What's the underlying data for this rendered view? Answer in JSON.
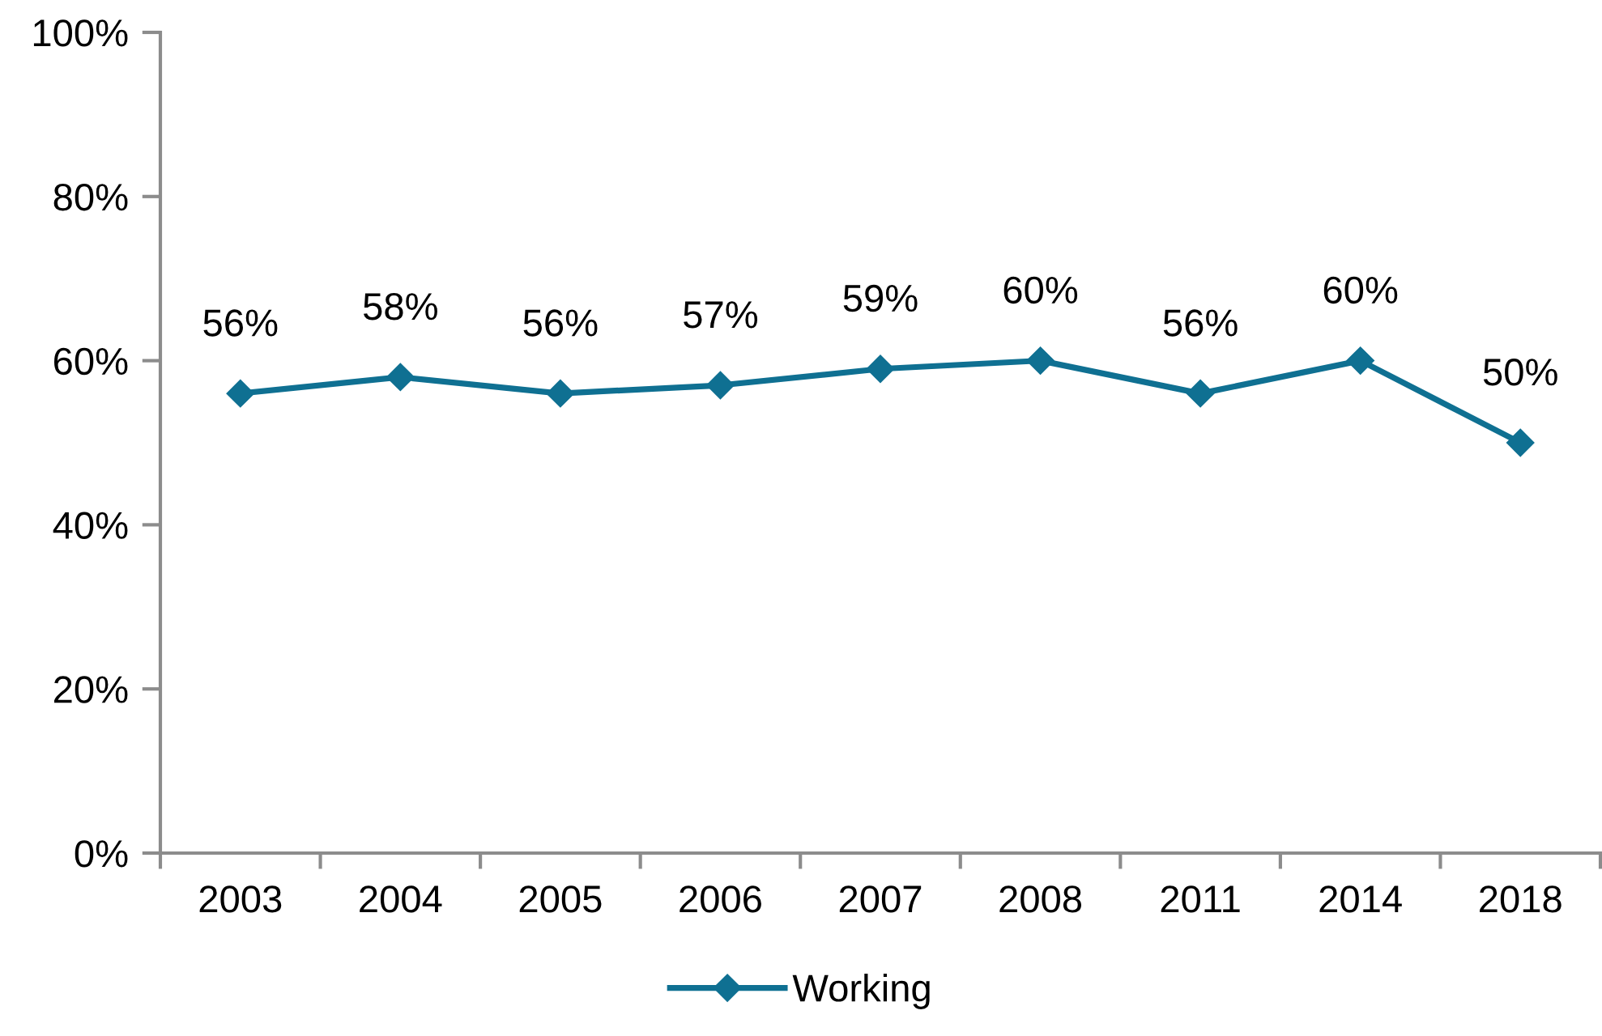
{
  "chart_data": {
    "type": "line",
    "categories": [
      "2003",
      "2004",
      "2005",
      "2006",
      "2007",
      "2008",
      "2011",
      "2014",
      "2018"
    ],
    "series": [
      {
        "name": "Working",
        "color": "#0f7092",
        "values": [
          56,
          58,
          56,
          57,
          59,
          60,
          56,
          60,
          50
        ],
        "value_labels": [
          "56%",
          "58%",
          "56%",
          "57%",
          "59%",
          "60%",
          "56%",
          "60%",
          "50%"
        ]
      }
    ],
    "ylim": [
      0,
      100
    ],
    "yticks": [
      {
        "value": 0,
        "label": "0%"
      },
      {
        "value": 20,
        "label": "20%"
      },
      {
        "value": 40,
        "label": "40%"
      },
      {
        "value": 60,
        "label": "60%"
      },
      {
        "value": 80,
        "label": "80%"
      },
      {
        "value": 100,
        "label": "100%"
      }
    ],
    "grid": false,
    "legend": "bottom",
    "marker": "diamond",
    "line_style": "solid"
  }
}
